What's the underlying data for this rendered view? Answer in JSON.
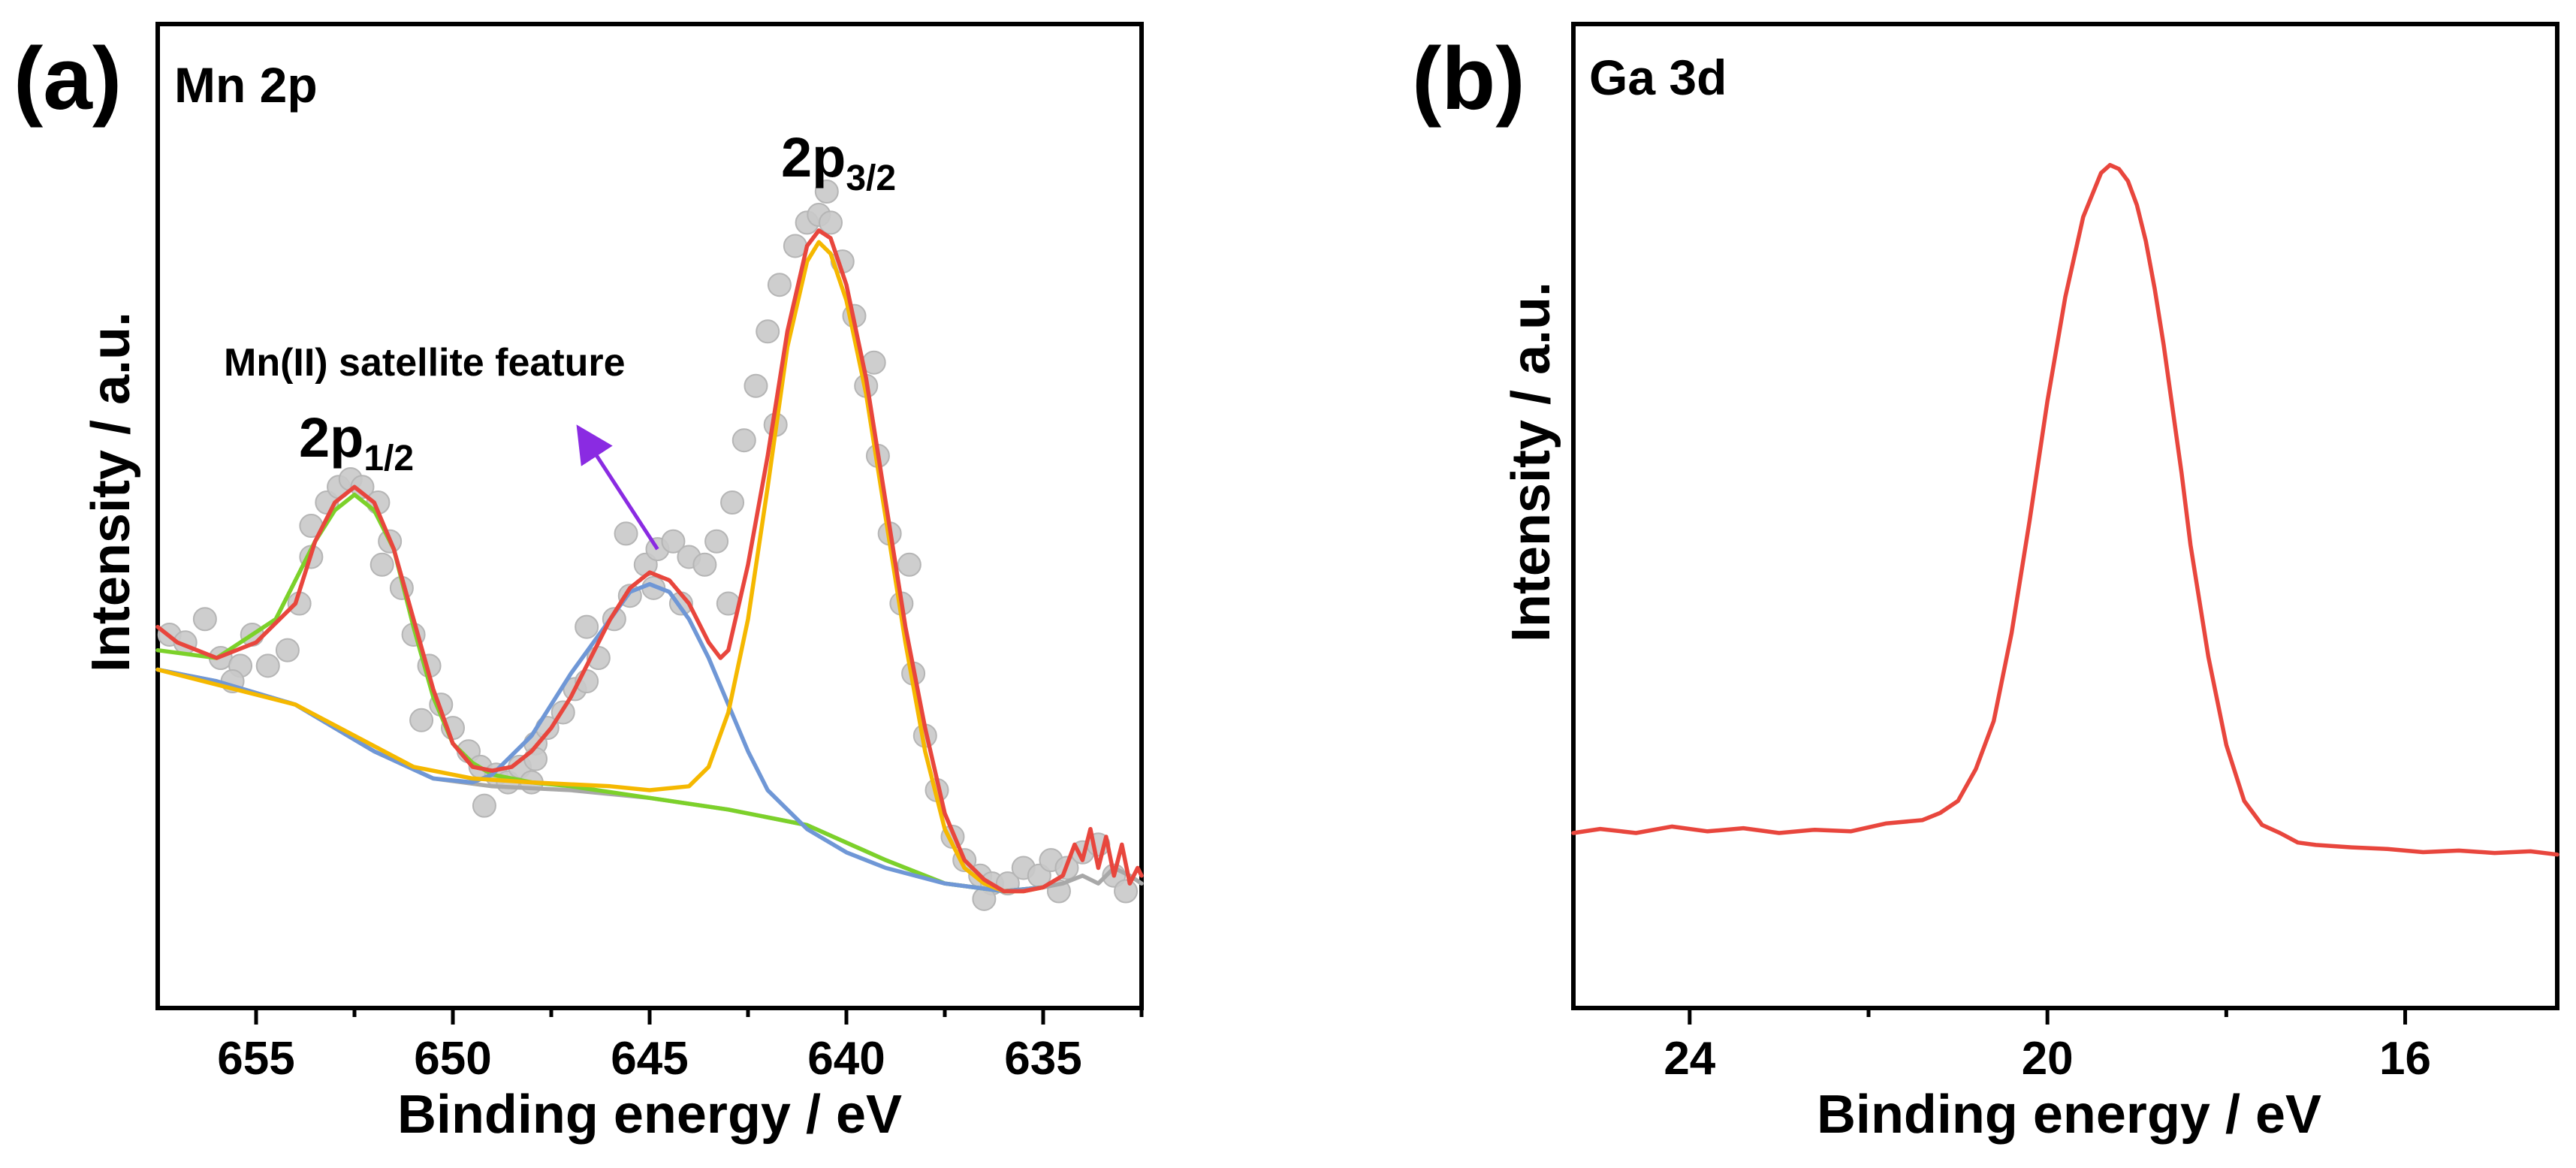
{
  "chart_data": [
    {
      "type": "line",
      "panel_label": "(a)",
      "title": "Mn 2p",
      "xlabel": "Binding energy / eV",
      "ylabel": "Intensity / a.u.",
      "xlim": [
        657.5,
        632.5
      ],
      "ylim": [
        0,
        100
      ],
      "x_reversed": true,
      "yticks_shown": false,
      "x_ticks": [
        655,
        650,
        645,
        640,
        635
      ],
      "x_minor_ticks": [
        652.5,
        647.5,
        642.5,
        637.5,
        632.5
      ],
      "peak_labels": [
        {
          "main": "2p",
          "sub": "1/2",
          "x": 652.5,
          "y": 66
        },
        {
          "main": "2p",
          "sub": "3/2",
          "x": 640.8,
          "y": 96
        }
      ],
      "annotation": {
        "text": "Mn(II) satellite feature",
        "arrow_from": [
          644.8,
          54
        ],
        "arrow_to": [
          646.6,
          68
        ],
        "arrow_color": "#8a2be2"
      },
      "points": [
        [
          657.2,
          43
        ],
        [
          656.8,
          42
        ],
        [
          656.3,
          45
        ],
        [
          655.9,
          40
        ],
        [
          655.4,
          39
        ],
        [
          655.1,
          43
        ],
        [
          654.7,
          39
        ],
        [
          654.2,
          41
        ],
        [
          653.9,
          47
        ],
        [
          653.6,
          53
        ],
        [
          653.2,
          60
        ],
        [
          652.9,
          62
        ],
        [
          652.6,
          63
        ],
        [
          652.3,
          62
        ],
        [
          651.9,
          60
        ],
        [
          651.6,
          55
        ],
        [
          651.3,
          49
        ],
        [
          651.0,
          43
        ],
        [
          650.6,
          39
        ],
        [
          650.3,
          34
        ],
        [
          650.0,
          31
        ],
        [
          649.6,
          28
        ],
        [
          649.3,
          26
        ],
        [
          648.9,
          25
        ],
        [
          648.6,
          24
        ],
        [
          648.3,
          26
        ],
        [
          647.9,
          29
        ],
        [
          647.6,
          31
        ],
        [
          647.2,
          33
        ],
        [
          646.9,
          36
        ],
        [
          646.6,
          37
        ],
        [
          646.3,
          40
        ],
        [
          645.9,
          45
        ],
        [
          645.5,
          48
        ],
        [
          645.1,
          52
        ],
        [
          644.8,
          54
        ],
        [
          644.4,
          55
        ],
        [
          644.0,
          53
        ],
        [
          643.6,
          52
        ],
        [
          643.3,
          55
        ],
        [
          642.9,
          60
        ],
        [
          642.6,
          68
        ],
        [
          642.3,
          75
        ],
        [
          642.0,
          82
        ],
        [
          641.7,
          88
        ],
        [
          641.3,
          93
        ],
        [
          641.0,
          96
        ],
        [
          640.7,
          97
        ],
        [
          640.4,
          96
        ],
        [
          640.1,
          91
        ],
        [
          639.8,
          84
        ],
        [
          639.5,
          75
        ],
        [
          639.2,
          66
        ],
        [
          638.9,
          56
        ],
        [
          638.6,
          47
        ],
        [
          638.3,
          38
        ],
        [
          638.0,
          30
        ],
        [
          637.7,
          23
        ],
        [
          637.3,
          17
        ],
        [
          637.0,
          14
        ],
        [
          636.6,
          12
        ],
        [
          636.3,
          11
        ],
        [
          635.9,
          11
        ],
        [
          635.5,
          13
        ],
        [
          635.1,
          12
        ],
        [
          634.8,
          14
        ],
        [
          634.4,
          13
        ],
        [
          634.0,
          15
        ],
        [
          633.6,
          16
        ],
        [
          633.2,
          12
        ],
        [
          632.9,
          10
        ],
        [
          649.2,
          21
        ],
        [
          648.0,
          24
        ],
        [
          646.6,
          44
        ],
        [
          645.6,
          56
        ],
        [
          644.2,
          47
        ],
        [
          643.0,
          47
        ],
        [
          641.8,
          70
        ],
        [
          640.5,
          100
        ],
        [
          639.3,
          78
        ],
        [
          638.4,
          52
        ],
        [
          651.8,
          52
        ],
        [
          653.6,
          57
        ],
        [
          655.6,
          37
        ],
        [
          650.8,
          32
        ],
        [
          636.5,
          9
        ],
        [
          634.6,
          10
        ],
        [
          647.9,
          27
        ],
        [
          644.9,
          49
        ]
      ],
      "series": [
        {
          "name": "background",
          "color": "#a8a8a8",
          "x": [
            657.5,
            656,
            654,
            652,
            650.5,
            649,
            647,
            645,
            643,
            641,
            639,
            637.5,
            636,
            635,
            634.5,
            634,
            633.6,
            633.2,
            632.8,
            632.5
          ],
          "y": [
            38.5,
            37,
            34,
            28,
            24.5,
            23.5,
            23,
            22,
            20.5,
            18.5,
            14,
            11,
            10,
            10.5,
            11,
            12,
            11,
            13,
            12,
            11
          ]
        },
        {
          "name": "Mn 2p1/2 fit",
          "color": "#7cd12a",
          "x": [
            657.5,
            656,
            654.5,
            653.5,
            653,
            652.5,
            652,
            651.5,
            651,
            650.5,
            650,
            649.5,
            649,
            648,
            647,
            645,
            643,
            641,
            639,
            637.5,
            636,
            635
          ],
          "y": [
            41,
            40,
            45,
            55,
            59,
            61,
            59,
            54,
            44,
            35,
            29,
            26.5,
            25,
            24,
            23.5,
            22,
            20.5,
            18.5,
            14,
            11,
            10,
            10.5
          ]
        },
        {
          "name": "satellite fit",
          "color": "#6f97d6",
          "x": [
            657.5,
            656,
            654,
            652,
            650.5,
            649.5,
            649,
            648,
            647,
            646,
            645.5,
            645,
            644.5,
            644,
            643.5,
            643,
            642.5,
            642,
            641,
            640,
            639,
            637.5,
            636,
            635
          ],
          "y": [
            38.5,
            37,
            34,
            28,
            24.5,
            24,
            25,
            30,
            38,
            45,
            48.5,
            49.5,
            48.5,
            45,
            40,
            34,
            28,
            23,
            18,
            15,
            13,
            11,
            10,
            10.5
          ]
        },
        {
          "name": "Mn 2p3/2 fit",
          "color": "#f5b800",
          "x": [
            657.5,
            654,
            651,
            649.5,
            648,
            646,
            645,
            644,
            643.5,
            643,
            642.5,
            642,
            641.5,
            641,
            640.7,
            640.4,
            640,
            639.5,
            639,
            638.5,
            638,
            637.5,
            637,
            636.5,
            636,
            635.5,
            635
          ],
          "y": [
            38.5,
            34,
            26,
            24.5,
            24,
            23.5,
            23,
            23.5,
            26,
            33,
            45,
            62,
            80,
            91,
            93.5,
            92,
            86,
            74,
            58,
            42,
            28,
            18,
            13,
            11,
            10,
            10,
            10.5
          ]
        },
        {
          "name": "envelope",
          "color": "#e8463d",
          "x": [
            657.5,
            657,
            656.5,
            656,
            655,
            654,
            653.5,
            653,
            652.5,
            652,
            651.5,
            651,
            650.5,
            650,
            649.5,
            649,
            648.5,
            648,
            647.5,
            647,
            646.5,
            646,
            645.5,
            645,
            644.5,
            644,
            643.5,
            643.2,
            643,
            642.5,
            642,
            641.5,
            641,
            640.7,
            640.4,
            640,
            639.5,
            639,
            638.5,
            638,
            637.5,
            637,
            636.5,
            636,
            635.5,
            635,
            634.5,
            634.2,
            634,
            633.8,
            633.6,
            633.4,
            633.2,
            633,
            632.8,
            632.6,
            632.5
          ],
          "y": [
            44,
            42,
            41,
            40,
            42,
            47,
            55,
            60,
            62,
            60,
            54,
            45,
            36,
            29,
            26,
            25.5,
            26,
            28,
            31,
            35,
            40,
            45,
            49,
            51,
            50,
            47,
            42,
            40,
            41,
            52,
            66,
            82,
            93,
            95,
            94,
            88,
            76,
            60,
            44,
            31,
            20,
            14,
            11.5,
            10,
            10,
            10.5,
            12,
            16,
            14,
            18,
            13,
            17,
            12,
            16,
            11,
            13,
            12
          ]
        }
      ]
    },
    {
      "type": "line",
      "panel_label": "(b)",
      "title": "Ga 3d",
      "xlabel": "Binding energy / eV",
      "ylabel": "Intensity / a.u.",
      "xlim": [
        25.3,
        14.3
      ],
      "ylim": [
        0,
        100
      ],
      "x_reversed": true,
      "yticks_shown": false,
      "x_ticks": [
        24,
        20,
        16
      ],
      "x_minor_ticks": [
        22,
        18,
        14
      ],
      "series": [
        {
          "name": "Ga 3d spectrum",
          "color": "#e8463d",
          "x": [
            25.3,
            25,
            24.6,
            24.2,
            23.8,
            23.4,
            23,
            22.6,
            22.2,
            21.8,
            21.4,
            21.2,
            21,
            20.8,
            20.6,
            20.4,
            20.2,
            20,
            19.8,
            19.6,
            19.4,
            19.3,
            19.2,
            19.1,
            19,
            18.9,
            18.8,
            18.7,
            18.6,
            18.5,
            18.4,
            18.2,
            18,
            17.8,
            17.6,
            17.4,
            17.2,
            17,
            16.6,
            16.2,
            15.8,
            15.4,
            15,
            14.6,
            14.3
          ],
          "y": [
            17,
            17.5,
            17,
            17.8,
            17.2,
            17.6,
            17,
            17.4,
            17.2,
            18.2,
            18.6,
            19.5,
            21,
            25,
            31,
            42,
            56,
            71,
            84,
            94,
            99.5,
            100.5,
            100,
            98.5,
            95.5,
            91,
            85,
            78,
            70,
            62,
            53,
            39,
            28,
            21,
            18,
            17,
            15.8,
            15.5,
            15.2,
            15,
            14.6,
            14.8,
            14.5,
            14.7,
            14.3
          ]
        }
      ]
    }
  ]
}
